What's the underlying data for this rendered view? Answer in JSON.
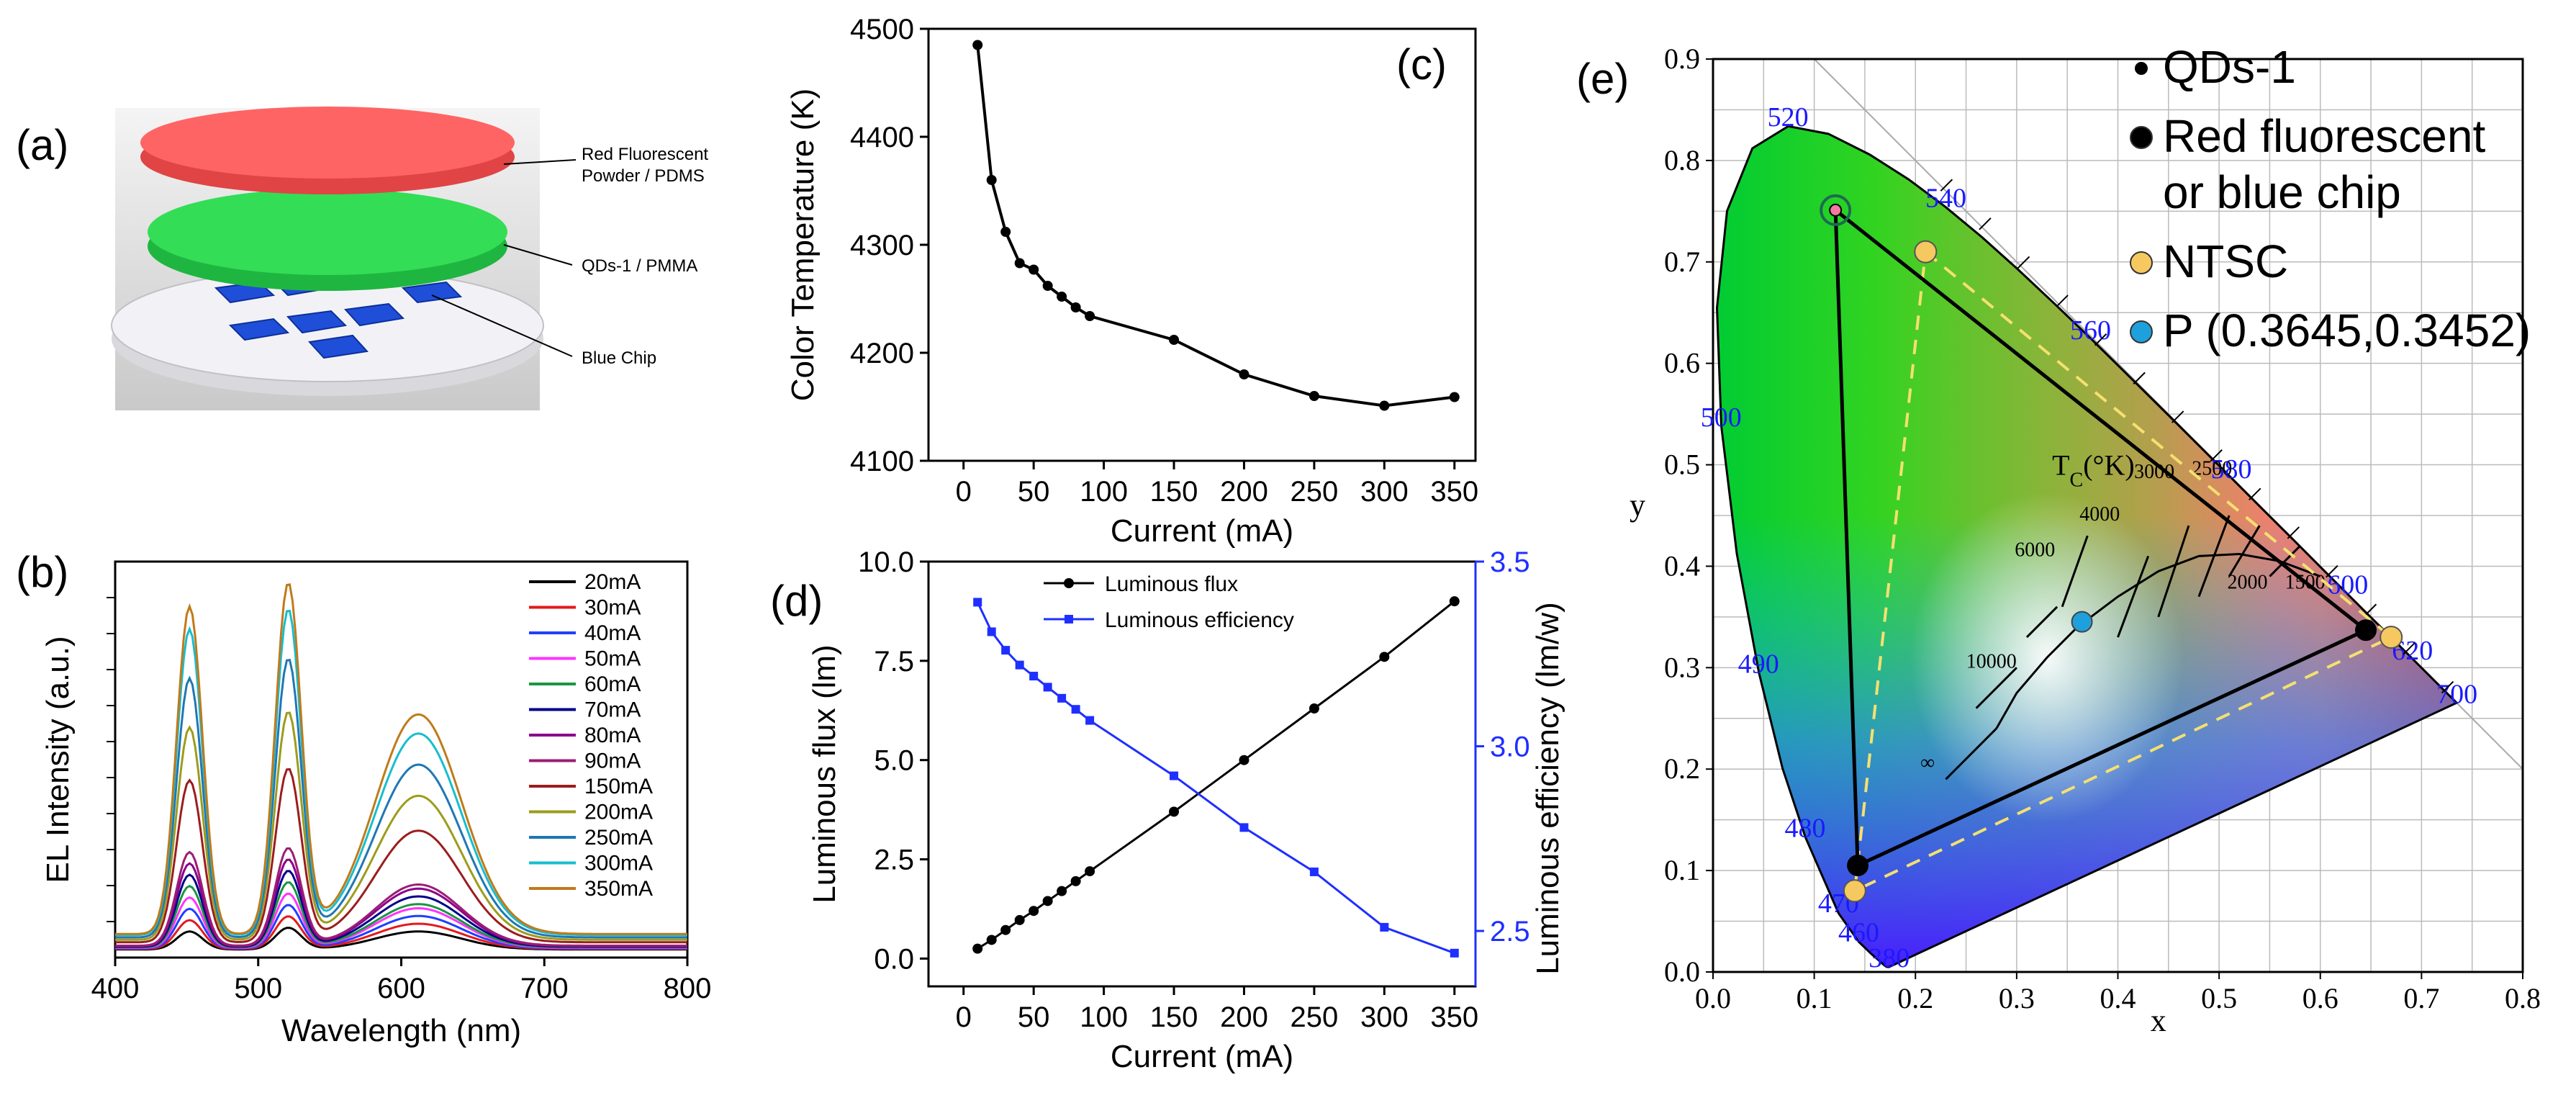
{
  "panels": {
    "a": {
      "letter": "(a)",
      "labels": [
        "Red Fluorescent\nPowder / PDMS",
        "QDs-1 / PMMA",
        "Blue Chip"
      ],
      "colors": {
        "red_layer": "#ff5a5a",
        "green_layer": "#33dd55",
        "chip": "#1f4fd8",
        "base": "#e8e8ee"
      }
    },
    "b": {
      "letter": "(b)",
      "chart_data": {
        "type": "line",
        "xlabel": "Wavelength (nm)",
        "ylabel": "EL Intensity (a.u.)",
        "xlim": [
          400,
          800
        ],
        "xticks": [
          400,
          500,
          600,
          700,
          800
        ],
        "ylim": [
          0,
          1.1
        ],
        "peaks": [
          452,
          521,
          612
        ],
        "series": [
          {
            "name": "20mA",
            "color": "#000000",
            "amps": [
              0.05,
              0.06,
              0.05
            ]
          },
          {
            "name": "30mA",
            "color": "#e31a1c",
            "amps": [
              0.08,
              0.09,
              0.07
            ]
          },
          {
            "name": "40mA",
            "color": "#1f3fff",
            "amps": [
              0.11,
              0.12,
              0.09
            ]
          },
          {
            "name": "50mA",
            "color": "#ff33ff",
            "amps": [
              0.14,
              0.15,
              0.11
            ]
          },
          {
            "name": "60mA",
            "color": "#1a9641",
            "amps": [
              0.17,
              0.18,
              0.12
            ]
          },
          {
            "name": "70mA",
            "color": "#00008b",
            "amps": [
              0.2,
              0.21,
              0.14
            ]
          },
          {
            "name": "80mA",
            "color": "#8b008b",
            "amps": [
              0.23,
              0.24,
              0.16
            ]
          },
          {
            "name": "90mA",
            "color": "#9b1d75",
            "amps": [
              0.26,
              0.27,
              0.17
            ]
          },
          {
            "name": "150mA",
            "color": "#9b1d1d",
            "amps": [
              0.45,
              0.48,
              0.31
            ]
          },
          {
            "name": "200mA",
            "color": "#9c9c1c",
            "amps": [
              0.59,
              0.63,
              0.4
            ]
          },
          {
            "name": "250mA",
            "color": "#1f77b4",
            "amps": [
              0.72,
              0.77,
              0.48
            ]
          },
          {
            "name": "300mA",
            "color": "#17becf",
            "amps": [
              0.85,
              0.9,
              0.56
            ]
          },
          {
            "name": "350mA",
            "color": "#c07a1a",
            "amps": [
              0.91,
              0.97,
              0.61
            ]
          }
        ]
      }
    },
    "c": {
      "letter": "(c)",
      "chart_data": {
        "type": "line",
        "xlabel": "Current (mA)",
        "ylabel": "Color Temperature (K)",
        "xlim": [
          -25,
          365
        ],
        "ylim": [
          4100,
          4500
        ],
        "xticks": [
          0,
          50,
          100,
          150,
          200,
          250,
          300,
          350
        ],
        "yticks": [
          4100,
          4200,
          4300,
          4400,
          4500
        ],
        "x": [
          10,
          20,
          30,
          40,
          50,
          60,
          70,
          80,
          90,
          150,
          200,
          250,
          300,
          350
        ],
        "y": [
          4485,
          4360,
          4312,
          4283,
          4277,
          4262,
          4252,
          4242,
          4234,
          4212,
          4180,
          4160,
          4151,
          4159
        ]
      }
    },
    "d": {
      "letter": "(d)",
      "chart_data": {
        "type": "line",
        "xlabel": "Current (mA)",
        "ylabel": "Luminous flux (lm)",
        "y2label": "Luminous efficiency (lm/w)",
        "xlim": [
          -25,
          365
        ],
        "ylim": [
          -0.7,
          10
        ],
        "y2lim": [
          2.35,
          3.5
        ],
        "xticks": [
          0,
          50,
          100,
          150,
          200,
          250,
          300,
          350
        ],
        "yticks": [
          "0.0",
          "2.5",
          "5.0",
          "7.5",
          "10.0"
        ],
        "y2ticks": [
          "2.5",
          "3.0",
          "3.5"
        ],
        "x": [
          10,
          20,
          30,
          40,
          50,
          60,
          70,
          80,
          90,
          150,
          200,
          250,
          300,
          350
        ],
        "series": [
          {
            "name": "Luminous flux",
            "axis": "left",
            "color": "#000000",
            "marker": "circle",
            "values": [
              0.25,
              0.47,
              0.72,
              0.97,
              1.2,
              1.45,
              1.7,
              1.95,
              2.2,
              3.7,
              5.0,
              6.3,
              7.6,
              9.0
            ]
          },
          {
            "name": "Luminous efficiency",
            "axis": "right",
            "color": "#1f2fff",
            "marker": "square",
            "values": [
              3.39,
              3.31,
              3.26,
              3.22,
              3.19,
              3.16,
              3.13,
              3.1,
              3.07,
              2.92,
              2.78,
              2.66,
              2.51,
              2.44
            ]
          }
        ]
      }
    },
    "e": {
      "letter": "(e)",
      "chart_data": {
        "type": "scatter",
        "xlabel": "x",
        "ylabel": "y",
        "xlim": [
          0.0,
          0.8
        ],
        "ylim": [
          0.0,
          0.9
        ],
        "xticks": [
          "0.0",
          "0.1",
          "0.2",
          "0.3",
          "0.4",
          "0.5",
          "0.6",
          "0.7",
          "0.8"
        ],
        "yticks": [
          "0.0",
          "0.1",
          "0.2",
          "0.3",
          "0.4",
          "0.5",
          "0.6",
          "0.7",
          "0.8",
          "0.9"
        ],
        "legend": [
          {
            "label": "QDs-1",
            "marker": "small-dot",
            "color": "#000000"
          },
          {
            "label": "Red fluorescent\nor blue chip",
            "marker": "dot",
            "color": "#000000"
          },
          {
            "label": "NTSC",
            "marker": "dot",
            "color": "#f5c860"
          },
          {
            "label": "P (0.3645,0.3452)",
            "marker": "dot",
            "color": "#1ea0dc"
          }
        ],
        "gamut_device": [
          [
            0.121,
            0.751
          ],
          [
            0.645,
            0.337
          ],
          [
            0.143,
            0.105
          ]
        ],
        "gamut_ntsc": [
          [
            0.21,
            0.71
          ],
          [
            0.67,
            0.33
          ],
          [
            0.14,
            0.08
          ]
        ],
        "point_p": [
          0.3645,
          0.3452
        ],
        "wavelength_labels": [
          {
            "text": "520",
            "x": 0.074,
            "y": 0.834
          },
          {
            "text": "540",
            "x": 0.23,
            "y": 0.754
          },
          {
            "text": "560",
            "x": 0.373,
            "y": 0.624
          },
          {
            "text": "580",
            "x": 0.512,
            "y": 0.487
          },
          {
            "text": "600",
            "x": 0.627,
            "y": 0.373
          },
          {
            "text": "620",
            "x": 0.691,
            "y": 0.308
          },
          {
            "text": "700",
            "x": 0.735,
            "y": 0.265
          },
          {
            "text": "500",
            "x": 0.008,
            "y": 0.538
          },
          {
            "text": "490",
            "x": 0.045,
            "y": 0.295
          },
          {
            "text": "480",
            "x": 0.091,
            "y": 0.133
          },
          {
            "text": "470",
            "x": 0.124,
            "y": 0.059
          },
          {
            "text": "460",
            "x": 0.144,
            "y": 0.03
          },
          {
            "text": "380",
            "x": 0.174,
            "y": 0.005
          }
        ],
        "tc_title": "T",
        "tc_sub": "C",
        "tc_unit": "(°K)",
        "tc_labels": [
          {
            "text": "10000",
            "x": 0.275,
            "y": 0.3
          },
          {
            "text": "6000",
            "x": 0.318,
            "y": 0.41
          },
          {
            "text": "4000",
            "x": 0.382,
            "y": 0.445
          },
          {
            "text": "3000",
            "x": 0.436,
            "y": 0.487
          },
          {
            "text": "2500",
            "x": 0.493,
            "y": 0.49
          },
          {
            "text": "2000",
            "x": 0.528,
            "y": 0.378
          },
          {
            "text": "1500",
            "x": 0.585,
            "y": 0.378
          },
          {
            "text": "∞",
            "x": 0.212,
            "y": 0.2
          }
        ]
      }
    }
  }
}
